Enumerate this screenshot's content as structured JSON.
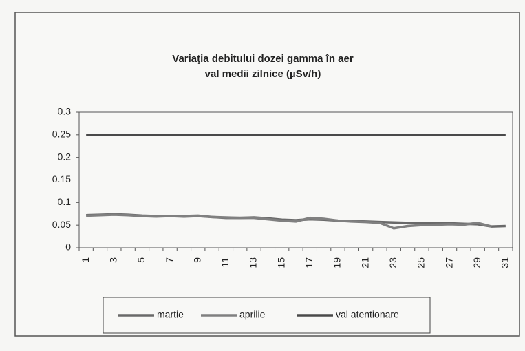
{
  "chart_data": {
    "type": "line",
    "title": "Variaţia debitului dozei gamma în aer",
    "subtitle": "val medii zilnice (µSv/h)",
    "categories": [
      "1",
      null,
      "3",
      null,
      "5",
      null,
      "7",
      null,
      "9",
      null,
      "11",
      null,
      "13",
      null,
      "15",
      null,
      "17",
      null,
      "19",
      null,
      "21",
      null,
      "23",
      null,
      "25",
      null,
      "27",
      null,
      "29",
      null,
      "31"
    ],
    "series": [
      {
        "name": "martie",
        "color": "#6a6a6a",
        "values": [
          0.072,
          0.073,
          0.074,
          0.073,
          0.071,
          0.07,
          0.07,
          0.069,
          0.07,
          0.068,
          0.066,
          0.066,
          0.067,
          0.065,
          0.062,
          0.061,
          0.063,
          0.062,
          0.06,
          0.059,
          0.058,
          0.057,
          0.056,
          0.055,
          0.055,
          0.054,
          0.054,
          0.053,
          0.052,
          0.047,
          0.048
        ]
      },
      {
        "name": "aprilie",
        "color": "#808080",
        "values": [
          0.071,
          0.072,
          0.073,
          0.072,
          0.07,
          0.069,
          0.07,
          0.07,
          0.071,
          0.068,
          0.067,
          0.066,
          0.066,
          0.063,
          0.06,
          0.058,
          0.066,
          0.064,
          0.06,
          0.058,
          0.057,
          0.055,
          0.043,
          0.048,
          0.05,
          0.051,
          0.052,
          0.051,
          0.055,
          0.047,
          null
        ]
      },
      {
        "name": "val atentionare",
        "color": "#4a4a4a",
        "values": [
          0.25,
          0.25,
          0.25,
          0.25,
          0.25,
          0.25,
          0.25,
          0.25,
          0.25,
          0.25,
          0.25,
          0.25,
          0.25,
          0.25,
          0.25,
          0.25,
          0.25,
          0.25,
          0.25,
          0.25,
          0.25,
          0.25,
          0.25,
          0.25,
          0.25,
          0.25,
          0.25,
          0.25,
          0.25,
          0.25,
          0.25
        ]
      }
    ],
    "ylim": [
      0,
      0.3
    ],
    "yticks": [
      0,
      0.05,
      0.1,
      0.15,
      0.2,
      0.25,
      0.3
    ],
    "grid": false
  }
}
